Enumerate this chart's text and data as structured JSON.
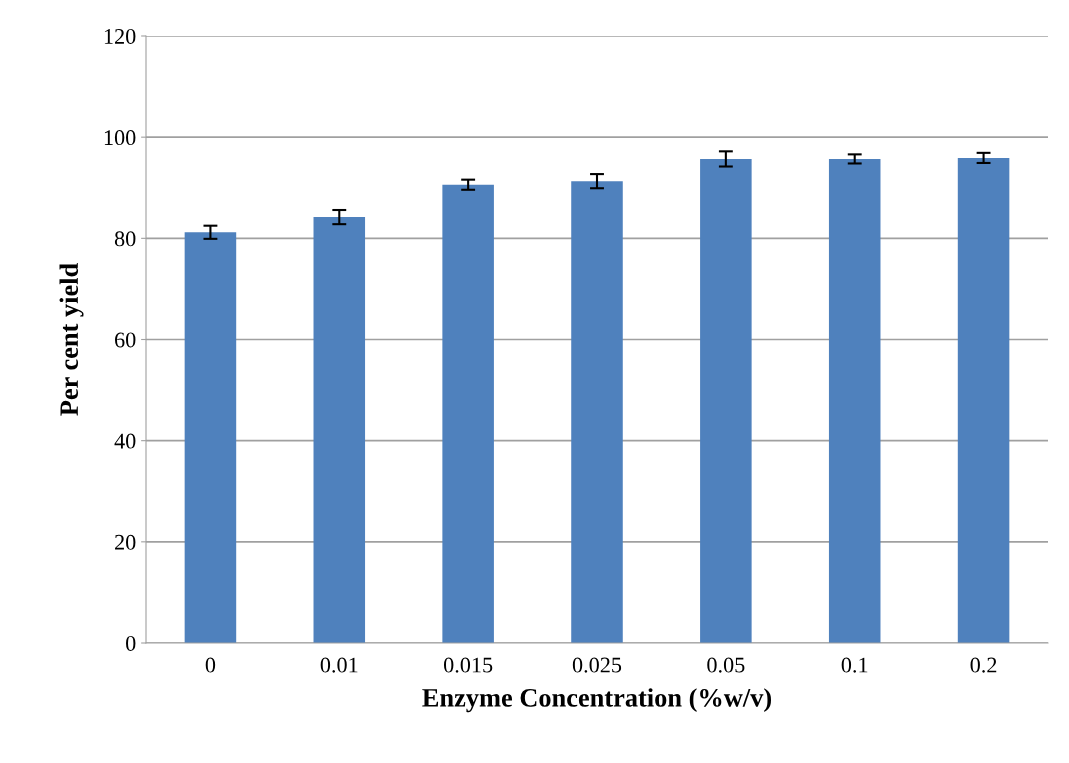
{
  "chart_data": {
    "type": "bar",
    "xlabel": "Enzyme Concentration (%w/v)",
    "ylabel": "Per cent yield",
    "categories": [
      "0",
      "0.01",
      "0.015",
      "0.025",
      "0.05",
      "0.1",
      "0.2"
    ],
    "values": [
      81.2,
      84.2,
      90.6,
      91.3,
      95.7,
      95.7,
      95.9
    ],
    "errors": [
      1.3,
      1.4,
      1.0,
      1.4,
      1.5,
      0.9,
      1.0
    ],
    "color": "#4f81bd",
    "ylim": [
      0,
      120
    ],
    "yticks": [
      0,
      20,
      40,
      60,
      80,
      100,
      120
    ],
    "grid": "y"
  }
}
